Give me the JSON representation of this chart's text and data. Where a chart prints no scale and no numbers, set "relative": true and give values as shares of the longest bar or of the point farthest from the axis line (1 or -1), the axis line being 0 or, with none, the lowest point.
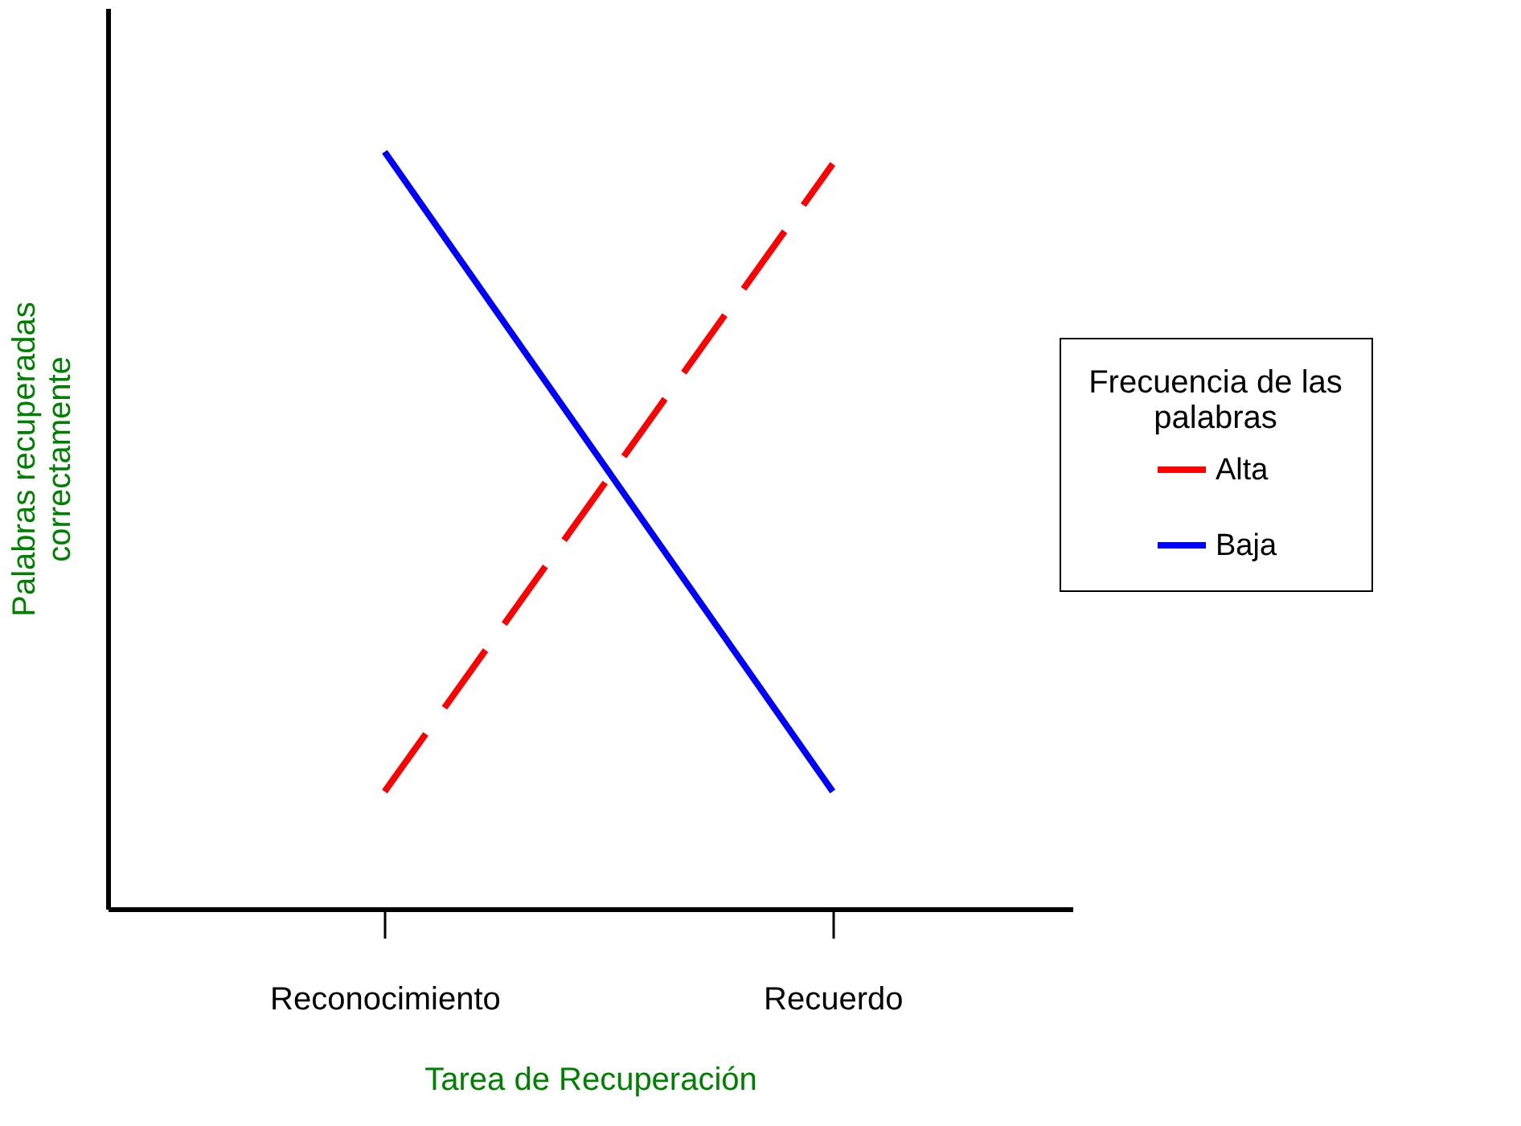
{
  "chart_data": {
    "type": "line",
    "xlabel": "Tarea de Recuperación",
    "ylabel": "Palabras recuperadas correctamente",
    "legend_title": "Frecuencia de las palabras",
    "categories": [
      "Reconocimiento",
      "Recuerdo"
    ],
    "relative": true,
    "grid": false,
    "legend": "right",
    "tick_labels": "x",
    "series": [
      {
        "name": "Alta",
        "color": "#ff0000",
        "values": [
          0.155,
          0.984
        ],
        "line_style": "dashed"
      },
      {
        "name": "Baja",
        "color": "#0000ff",
        "values": [
          1,
          0.155
        ],
        "line_style": "solid"
      }
    ]
  }
}
